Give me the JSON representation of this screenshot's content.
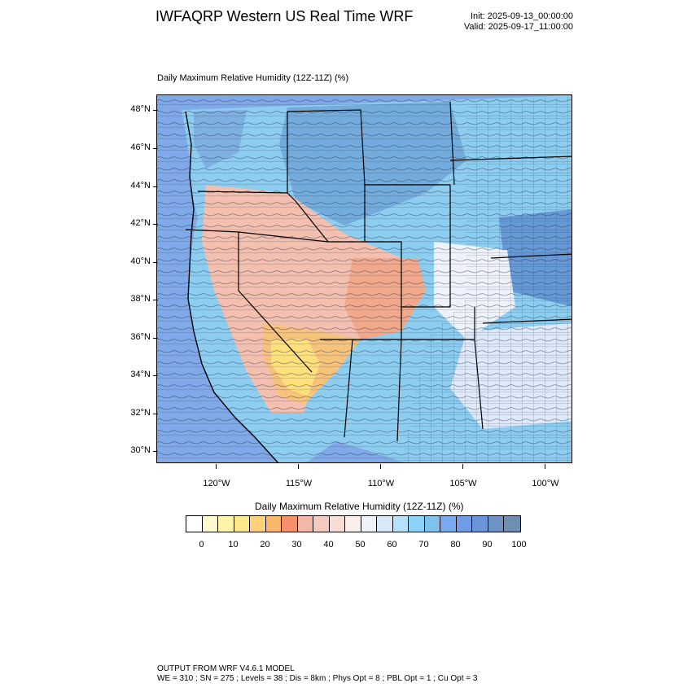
{
  "header": {
    "title": "IWFAQRP Western US Real Time WRF",
    "init": "Init: 2025-09-13_00:00:00",
    "valid": "Valid: 2025-09-17_11:00:00"
  },
  "plot": {
    "subtitle": "Daily Maximum Relative Humidity (12Z-11Z)   (%)",
    "lat_labels": [
      "48°N",
      "46°N",
      "44°N",
      "42°N",
      "40°N",
      "38°N",
      "36°N",
      "34°N",
      "32°N",
      "30°N"
    ],
    "lon_labels": [
      "120°W",
      "115°W",
      "110°W",
      "105°W",
      "100°W"
    ]
  },
  "colorbar": {
    "title": "Daily Maximum Relative Humidity (12Z-11Z)  (%)",
    "labels": [
      "0",
      "10",
      "20",
      "30",
      "40",
      "50",
      "60",
      "70",
      "80",
      "90",
      "100"
    ],
    "colors": [
      "#ffffff",
      "#fffbcf",
      "#fff4a8",
      "#ffe88a",
      "#fdd27a",
      "#fbb86a",
      "#f5916a",
      "#f2b8ac",
      "#f5c9bf",
      "#f8ddd4",
      "#fbefec",
      "#eef3fb",
      "#d8e8fa",
      "#b7e2fb",
      "#8dd3f8",
      "#7fc2f0",
      "#77aaf0",
      "#6f9ce6",
      "#6b95d8",
      "#6c93c4",
      "#6f8fb0"
    ]
  },
  "footer": {
    "line1": "OUTPUT FROM WRF V4.6.1 MODEL",
    "line2": "WE = 310 ; SN = 275 ; Levels = 38 ; Dis = 8km ; Phys Opt = 8 ; PBL Opt = 1 ; Cu Opt = 3"
  }
}
